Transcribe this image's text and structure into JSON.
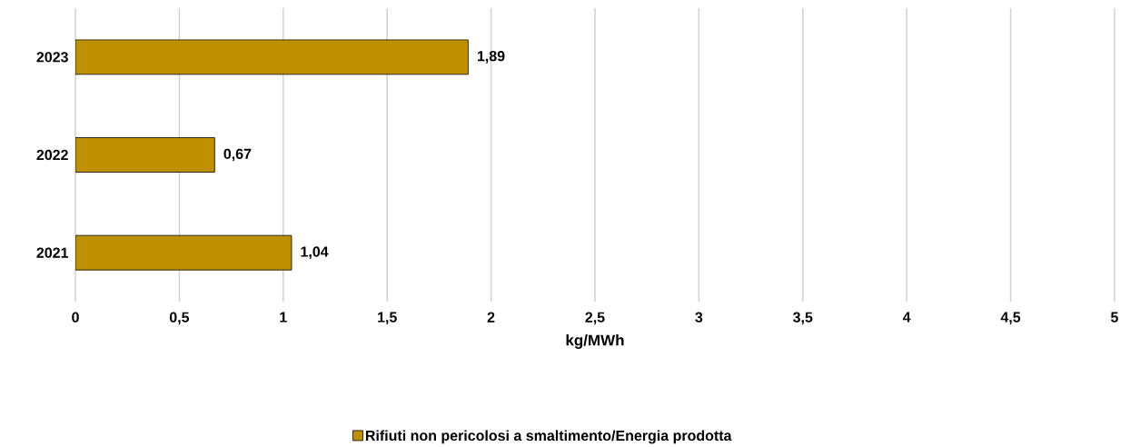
{
  "chart_data": {
    "type": "bar",
    "orientation": "horizontal",
    "categories": [
      "2023",
      "2022",
      "2021"
    ],
    "series": [
      {
        "name": "Rifiuti non pericolosi a smaltimento/Energia prodotta",
        "color": "#bf9000",
        "values": [
          1.89,
          0.67,
          1.04
        ],
        "value_labels": [
          "1,89",
          "0,67",
          "1,04"
        ]
      }
    ],
    "xlabel": "kg/MWh",
    "xlim": [
      0,
      5
    ],
    "xticks": [
      0,
      {
        "value": 0.5,
        "label": "0,5"
      },
      1,
      {
        "value": 1.5,
        "label": "1,5"
      },
      2,
      {
        "value": 2.5,
        "label": "2,5"
      },
      3,
      {
        "value": 3.5,
        "label": "3,5"
      },
      4,
      {
        "value": 4.5,
        "label": "4,5"
      },
      5
    ],
    "grid": "x",
    "legend": "bottom"
  }
}
